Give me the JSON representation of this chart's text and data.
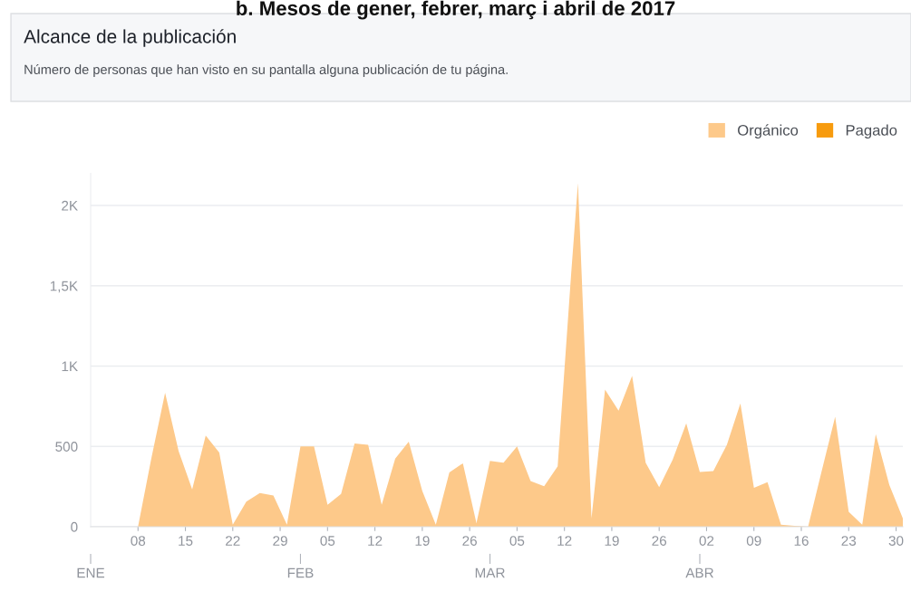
{
  "chart_data": {
    "type": "area",
    "title": "Alcance de la publicación",
    "subtitle": "Número de personas que han visto en su pantalla alguna publicación de tu página.",
    "annotations": [
      "b. Mesos de gener, febrer, març i abril de 2017"
    ],
    "x": [
      "2017-01-02",
      "2017-01-04",
      "2017-01-06",
      "2017-01-08",
      "2017-01-10",
      "2017-01-12",
      "2017-01-14",
      "2017-01-16",
      "2017-01-18",
      "2017-01-20",
      "2017-01-22",
      "2017-01-24",
      "2017-01-26",
      "2017-01-28",
      "2017-01-30",
      "2017-02-01",
      "2017-02-03",
      "2017-02-05",
      "2017-02-07",
      "2017-02-09",
      "2017-02-11",
      "2017-02-13",
      "2017-02-15",
      "2017-02-17",
      "2017-02-19",
      "2017-02-21",
      "2017-02-23",
      "2017-02-25",
      "2017-02-27",
      "2017-03-01",
      "2017-03-03",
      "2017-03-05",
      "2017-03-07",
      "2017-03-09",
      "2017-03-11",
      "2017-03-13",
      "2017-03-14",
      "2017-03-16",
      "2017-03-18",
      "2017-03-20",
      "2017-03-22",
      "2017-03-24",
      "2017-03-26",
      "2017-03-28",
      "2017-03-30",
      "2017-04-01",
      "2017-04-03",
      "2017-04-05",
      "2017-04-07",
      "2017-04-09",
      "2017-04-11",
      "2017-04-13",
      "2017-04-15",
      "2017-04-17",
      "2017-04-19",
      "2017-04-21",
      "2017-04-23",
      "2017-04-25",
      "2017-04-27",
      "2017-04-29",
      "2017-05-01"
    ],
    "series": [
      {
        "name": "Orgánico",
        "color": "#fdc98a",
        "values": [
          0,
          0,
          0,
          0,
          433,
          834,
          471,
          233,
          567,
          462,
          13,
          156,
          210,
          195,
          13,
          500,
          500,
          137,
          204,
          519,
          510,
          137,
          424,
          529,
          223,
          13,
          338,
          395,
          23,
          410,
          399,
          500,
          284,
          252,
          376,
          1578,
          2140,
          52,
          853,
          723,
          939,
          399,
          246,
          418,
          643,
          341,
          347,
          510,
          767,
          242,
          277,
          13,
          5,
          0,
          345,
          685,
          93,
          13,
          576,
          261,
          52
        ]
      },
      {
        "name": "Pagado",
        "color": "#f79b0e",
        "values": [
          null,
          null,
          null,
          null,
          null,
          null,
          null,
          null,
          null,
          null,
          null,
          null,
          null,
          null,
          null,
          null,
          null,
          null,
          null,
          null,
          null,
          null,
          null,
          null,
          null,
          null,
          null,
          null,
          null,
          null,
          null,
          null,
          null,
          null,
          null,
          null,
          null,
          null,
          null,
          null,
          null,
          null,
          null,
          null,
          null,
          null,
          null,
          null,
          null,
          null,
          null,
          null,
          null,
          null,
          null,
          null,
          null,
          null,
          null,
          null,
          null
        ]
      }
    ],
    "xlim": [
      "2017-01-01",
      "2017-05-01"
    ],
    "x2lim": [
      "2017-01-01",
      "2017-05-01"
    ],
    "x2ticks": [
      {
        "value": "2017-01-01",
        "label": "ENE"
      },
      {
        "value": "2017-02-01",
        "label": "FEB"
      },
      {
        "value": "2017-03-01",
        "label": "MAR"
      },
      {
        "value": "2017-04-01",
        "label": "ABR"
      }
    ],
    "xticks": [
      {
        "value": "2017-01-08",
        "label": "08"
      },
      {
        "value": "2017-01-15",
        "label": "15"
      },
      {
        "value": "2017-01-22",
        "label": "22"
      },
      {
        "value": "2017-01-29",
        "label": "29"
      },
      {
        "value": "2017-02-05",
        "label": "05"
      },
      {
        "value": "2017-02-12",
        "label": "12"
      },
      {
        "value": "2017-02-19",
        "label": "19"
      },
      {
        "value": "2017-02-26",
        "label": "26"
      },
      {
        "value": "2017-03-05",
        "label": "05"
      },
      {
        "value": "2017-03-12",
        "label": "12"
      },
      {
        "value": "2017-03-19",
        "label": "19"
      },
      {
        "value": "2017-03-26",
        "label": "26"
      },
      {
        "value": "2017-04-02",
        "label": "02"
      },
      {
        "value": "2017-04-09",
        "label": "09"
      },
      {
        "value": "2017-04-16",
        "label": "16"
      },
      {
        "value": "2017-04-23",
        "label": "23"
      },
      {
        "value": "2017-04-30",
        "label": "30"
      }
    ],
    "ylim": [
      0,
      2200
    ],
    "yticks": [
      0,
      500,
      {
        "value": 1000,
        "label": "1K"
      },
      {
        "value": 1500,
        "label": "1,5K"
      },
      {
        "value": 2000,
        "label": "2K"
      }
    ],
    "grid": "y",
    "legend": "top right"
  }
}
